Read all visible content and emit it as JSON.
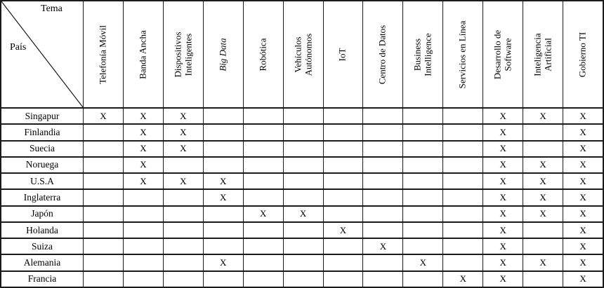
{
  "table": {
    "corner": {
      "top_label": "Tema",
      "bottom_label": "País"
    },
    "mark_glyph": "X",
    "colors": {
      "border": "#1a1a1a",
      "text": "#000000",
      "background": "#ffffff"
    },
    "columns": [
      {
        "id": "telefonia-movil",
        "lines": [
          "Telefonía Móvil"
        ],
        "italic": false
      },
      {
        "id": "banda-ancha",
        "lines": [
          "Banda Ancha"
        ],
        "italic": false
      },
      {
        "id": "dispositivos-inteligentes",
        "lines": [
          "Dispositivos",
          "Inteligentes"
        ],
        "italic": false
      },
      {
        "id": "big-data",
        "lines": [
          "Big Data"
        ],
        "italic": true
      },
      {
        "id": "robotica",
        "lines": [
          "Robótica"
        ],
        "italic": false
      },
      {
        "id": "vehiculos-autonomos",
        "lines": [
          "Vehículos",
          "Autónomos"
        ],
        "italic": false
      },
      {
        "id": "iot",
        "lines": [
          "IoT"
        ],
        "italic": false
      },
      {
        "id": "centro-de-datos",
        "lines": [
          "Centro de Datos"
        ],
        "italic": false
      },
      {
        "id": "business-intelligence",
        "lines": [
          "Business",
          "Intelligence"
        ],
        "italic": false
      },
      {
        "id": "servicios-en-linea",
        "lines": [
          "Servicios en Línea"
        ],
        "italic": false
      },
      {
        "id": "desarrollo-de-software",
        "lines": [
          "Desarrollo de",
          "Software"
        ],
        "italic": false
      },
      {
        "id": "inteligencia-artificial",
        "lines": [
          "Inteligencia",
          "Artificial"
        ],
        "italic": false
      },
      {
        "id": "gobierno-ti",
        "lines": [
          "Gobierno TI"
        ],
        "italic": false
      }
    ],
    "rows": [
      {
        "country": "Singapur",
        "marks": [
          1,
          1,
          1,
          0,
          0,
          0,
          0,
          0,
          0,
          0,
          1,
          1,
          1
        ]
      },
      {
        "country": "Finlandia",
        "marks": [
          0,
          1,
          1,
          0,
          0,
          0,
          0,
          0,
          0,
          0,
          1,
          0,
          1
        ]
      },
      {
        "country": "Suecia",
        "marks": [
          0,
          1,
          1,
          0,
          0,
          0,
          0,
          0,
          0,
          0,
          1,
          0,
          1
        ]
      },
      {
        "country": "Noruega",
        "marks": [
          0,
          1,
          0,
          0,
          0,
          0,
          0,
          0,
          0,
          0,
          1,
          1,
          1
        ]
      },
      {
        "country": "U.S.A",
        "marks": [
          0,
          1,
          1,
          1,
          0,
          0,
          0,
          0,
          0,
          0,
          1,
          1,
          1
        ]
      },
      {
        "country": "Inglaterra",
        "marks": [
          0,
          0,
          0,
          1,
          0,
          0,
          0,
          0,
          0,
          0,
          1,
          1,
          1
        ]
      },
      {
        "country": "Japón",
        "marks": [
          0,
          0,
          0,
          0,
          1,
          1,
          0,
          0,
          0,
          0,
          1,
          1,
          1
        ]
      },
      {
        "country": "Holanda",
        "marks": [
          0,
          0,
          0,
          0,
          0,
          0,
          1,
          0,
          0,
          0,
          1,
          0,
          1
        ]
      },
      {
        "country": "Suiza",
        "marks": [
          0,
          0,
          0,
          0,
          0,
          0,
          0,
          1,
          0,
          0,
          1,
          0,
          1
        ]
      },
      {
        "country": "Alemania",
        "marks": [
          0,
          0,
          0,
          1,
          0,
          0,
          0,
          0,
          1,
          0,
          1,
          1,
          1
        ]
      },
      {
        "country": "Francia",
        "marks": [
          0,
          0,
          0,
          0,
          0,
          0,
          0,
          0,
          0,
          1,
          1,
          0,
          1
        ]
      }
    ]
  }
}
